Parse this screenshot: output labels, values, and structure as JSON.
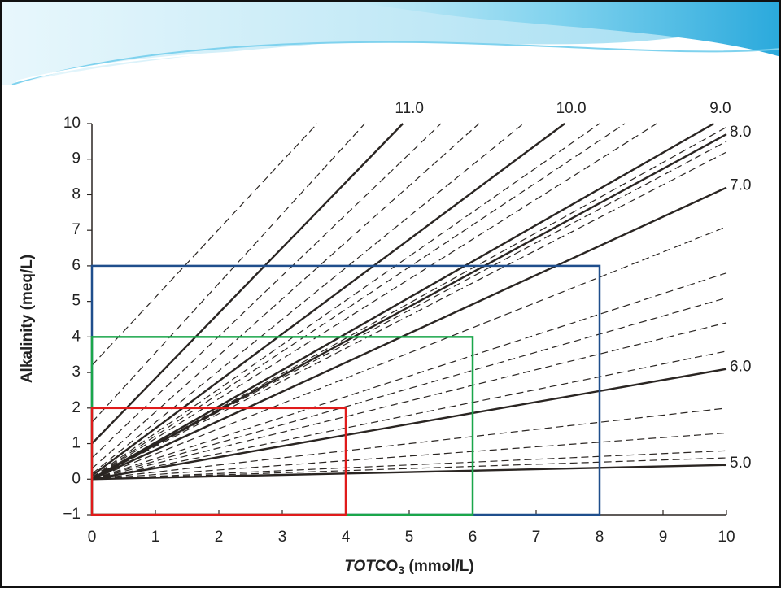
{
  "chart_data": {
    "type": "line",
    "x_label": [
      "TOT",
      "CO",
      "3",
      " (mmol/L)"
    ],
    "y_label": "Alkalinity (meq/L)",
    "xlim": [
      0,
      10
    ],
    "ylim": [
      -1,
      10
    ],
    "xticks": [
      0,
      1,
      2,
      3,
      4,
      5,
      6,
      7,
      8,
      9,
      10
    ],
    "yticks": [
      {
        "value": -1,
        "label": "−1"
      },
      0,
      1,
      2,
      3,
      4,
      5,
      6,
      7,
      8,
      9,
      10
    ],
    "line_color": "#2a2522",
    "series": [
      {
        "name": "11.0",
        "x": [
          0,
          4.9
        ],
        "values": [
          1,
          10
        ],
        "dashed": false
      },
      {
        "name": "10.0",
        "x": [
          0,
          7.45
        ],
        "values": [
          0.1,
          10
        ],
        "dashed": false
      },
      {
        "name": "9.0",
        "x": [
          0,
          9.8
        ],
        "values": [
          0.01,
          10
        ],
        "dashed": false
      },
      {
        "name": "8.0",
        "x": [
          0,
          10
        ],
        "values": [
          0,
          9.7
        ],
        "dashed": false
      },
      {
        "name": "7.0",
        "x": [
          0,
          10
        ],
        "values": [
          0,
          8.2
        ],
        "dashed": false
      },
      {
        "name": "6.0",
        "x": [
          0,
          10
        ],
        "values": [
          0,
          3.1
        ],
        "dashed": false
      },
      {
        "name": "5.0",
        "x": [
          0,
          10
        ],
        "values": [
          0,
          0.4
        ],
        "dashed": false
      },
      {
        "x": [
          0,
          3.55
        ],
        "values": [
          3.2,
          10
        ],
        "dashed": true
      },
      {
        "x": [
          0,
          4.3
        ],
        "values": [
          1.6,
          10
        ],
        "dashed": true
      },
      {
        "x": [
          0,
          5.5
        ],
        "values": [
          0.6,
          10
        ],
        "dashed": true
      },
      {
        "x": [
          0,
          6.1
        ],
        "values": [
          0.3,
          10
        ],
        "dashed": true
      },
      {
        "x": [
          0,
          6.8
        ],
        "values": [
          0.15,
          10
        ],
        "dashed": true
      },
      {
        "x": [
          0,
          8.0
        ],
        "values": [
          0.05,
          10
        ],
        "dashed": true
      },
      {
        "x": [
          0,
          8.4
        ],
        "values": [
          0.03,
          10
        ],
        "dashed": true
      },
      {
        "x": [
          0,
          8.9
        ],
        "values": [
          0.02,
          10
        ],
        "dashed": true
      },
      {
        "x": [
          0,
          10
        ],
        "values": [
          0,
          9.9
        ],
        "dashed": true
      },
      {
        "x": [
          0,
          10
        ],
        "values": [
          0,
          9.5
        ],
        "dashed": true
      },
      {
        "x": [
          0,
          10
        ],
        "values": [
          0,
          9.2
        ],
        "dashed": true
      },
      {
        "x": [
          0,
          10
        ],
        "values": [
          0,
          7.1
        ],
        "dashed": true
      },
      {
        "x": [
          0,
          10
        ],
        "values": [
          0,
          5.8
        ],
        "dashed": true
      },
      {
        "x": [
          0,
          10
        ],
        "values": [
          0,
          5.1
        ],
        "dashed": true
      },
      {
        "x": [
          0,
          10
        ],
        "values": [
          0,
          4.4
        ],
        "dashed": true
      },
      {
        "x": [
          0,
          10
        ],
        "values": [
          0,
          3.6
        ],
        "dashed": true
      },
      {
        "x": [
          0,
          10
        ],
        "values": [
          0,
          2.0
        ],
        "dashed": true
      },
      {
        "x": [
          0,
          10
        ],
        "values": [
          0,
          1.3
        ],
        "dashed": true
      },
      {
        "x": [
          0,
          10
        ],
        "values": [
          0,
          0.8
        ],
        "dashed": true
      },
      {
        "x": [
          0,
          10
        ],
        "values": [
          0,
          0.6
        ],
        "dashed": true
      }
    ],
    "regions": [
      {
        "x": [
          0,
          8
        ],
        "y": [
          -1,
          6
        ],
        "color": "#1f4e8c"
      },
      {
        "x": [
          0,
          6
        ],
        "y": [
          -1,
          4
        ],
        "color": "#1aa64a"
      },
      {
        "x": [
          0,
          4
        ],
        "y": [
          -1,
          2
        ],
        "color": "#e01b1b"
      }
    ]
  }
}
